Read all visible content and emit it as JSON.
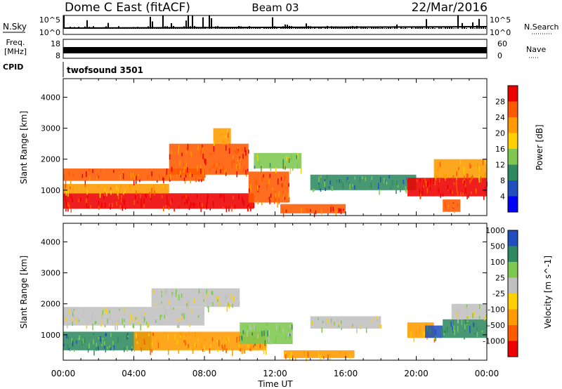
{
  "header": {
    "station": "Dome C East (fitACF)",
    "beam": "Beam 03",
    "date": "22/Mar/2016"
  },
  "nsky_panel": {
    "label": "N.Sky",
    "tick_top": "10^5",
    "tick_bottom": "10^0",
    "right_label": "N.Search",
    "right_tick_top": "10^5",
    "right_tick_bottom": "10^0"
  },
  "freq_panel": {
    "label_line1": "Freq.",
    "label_line2": "[MHz]",
    "tick_top": "18",
    "tick_bottom": "8",
    "right_label": "Nave",
    "right_tick_top": "60",
    "right_tick_bottom": "0"
  },
  "cpid": {
    "label": "CPID",
    "value": "twofsound 3501"
  },
  "time_axis": {
    "label": "Time UT",
    "ticks": [
      "00:00",
      "04:00",
      "08:00",
      "12:00",
      "16:00",
      "20:00",
      "00:00"
    ]
  },
  "colors": {
    "power_scale": [
      "#0000ff",
      "#2050c0",
      "#2e8a60",
      "#7ec850",
      "#ffd000",
      "#ff9a00",
      "#ff5a00",
      "#ee0000"
    ],
    "velocity_scale": [
      "#ee0000",
      "#ff5a00",
      "#ff9a00",
      "#ffd000",
      "#c0c0c0",
      "#7ec850",
      "#2e8a60",
      "#2050c0"
    ],
    "ground_scatter": "#c0c0c0"
  },
  "chart_data": [
    {
      "type": "heatmap",
      "title": "",
      "xlabel": "",
      "ylabel": "Slant Range [km]",
      "y_ticks": [
        "1000",
        "2000",
        "3000",
        "4000"
      ],
      "xlim_hours": [
        0,
        24
      ],
      "ylim_km": [
        180,
        4600
      ],
      "colorbar_label": "Power [dB]",
      "colorbar_ticks": [
        "4",
        "8",
        "12",
        "16",
        "20",
        "24",
        "28"
      ],
      "regions": [
        {
          "t0": 0.0,
          "t1": 10.8,
          "r0": 400,
          "r1": 900,
          "level": 7
        },
        {
          "t0": 0.0,
          "t1": 6.0,
          "r0": 900,
          "r1": 1200,
          "level": 5
        },
        {
          "t0": 0.0,
          "t1": 8.0,
          "r0": 1300,
          "r1": 1700,
          "level": 6
        },
        {
          "t0": 6.0,
          "t1": 10.5,
          "r0": 1500,
          "r1": 2500,
          "level": 6
        },
        {
          "t0": 8.5,
          "t1": 9.5,
          "r0": 2500,
          "r1": 3000,
          "level": 5
        },
        {
          "t0": 10.5,
          "t1": 12.8,
          "r0": 600,
          "r1": 1600,
          "level": 6
        },
        {
          "t0": 10.8,
          "t1": 13.5,
          "r0": 1700,
          "r1": 2200,
          "level": 3
        },
        {
          "t0": 12.3,
          "t1": 16.0,
          "r0": 250,
          "r1": 550,
          "level": 6
        },
        {
          "t0": 14.0,
          "t1": 20.0,
          "r0": 1000,
          "r1": 1500,
          "level": 2
        },
        {
          "t0": 19.5,
          "t1": 24.0,
          "r0": 800,
          "r1": 1400,
          "level": 7
        },
        {
          "t0": 21.0,
          "t1": 24.0,
          "r0": 1400,
          "r1": 2000,
          "level": 5
        },
        {
          "t0": 21.5,
          "t1": 22.5,
          "r0": 300,
          "r1": 700,
          "level": 6
        }
      ]
    },
    {
      "type": "heatmap",
      "title": "",
      "xlabel": "Time UT",
      "ylabel": "Slant Range [km]",
      "y_ticks": [
        "1000",
        "2000",
        "3000",
        "4000"
      ],
      "xlim_hours": [
        0,
        24
      ],
      "ylim_km": [
        180,
        4600
      ],
      "colorbar_label": "Velocity [m s^-1]",
      "colorbar_ticks": [
        "-1000",
        "-500",
        "-100",
        "-25",
        "25",
        "100",
        "500",
        "1000"
      ],
      "regions": [
        {
          "t0": 0.0,
          "t1": 8.0,
          "r0": 1300,
          "r1": 1900,
          "level": 4
        },
        {
          "t0": 5.0,
          "t1": 10.0,
          "r0": 1900,
          "r1": 2500,
          "level": 4
        },
        {
          "t0": 0.0,
          "t1": 5.0,
          "r0": 500,
          "r1": 1100,
          "level": 6
        },
        {
          "t0": 4.0,
          "t1": 11.5,
          "r0": 500,
          "r1": 1100,
          "level": 2
        },
        {
          "t0": 10.0,
          "t1": 13.0,
          "r0": 700,
          "r1": 1400,
          "level": 5
        },
        {
          "t0": 12.5,
          "t1": 16.5,
          "r0": 250,
          "r1": 500,
          "level": 2
        },
        {
          "t0": 14.0,
          "t1": 18.0,
          "r0": 1200,
          "r1": 1600,
          "level": 4
        },
        {
          "t0": 19.5,
          "t1": 21.0,
          "r0": 900,
          "r1": 1400,
          "level": 2
        },
        {
          "t0": 20.5,
          "t1": 21.5,
          "r0": 900,
          "r1": 1300,
          "level": 7
        },
        {
          "t0": 21.5,
          "t1": 24.0,
          "r0": 900,
          "r1": 1500,
          "level": 6
        },
        {
          "t0": 22.0,
          "t1": 24.0,
          "r0": 1500,
          "r1": 2000,
          "level": 4
        }
      ]
    }
  ]
}
